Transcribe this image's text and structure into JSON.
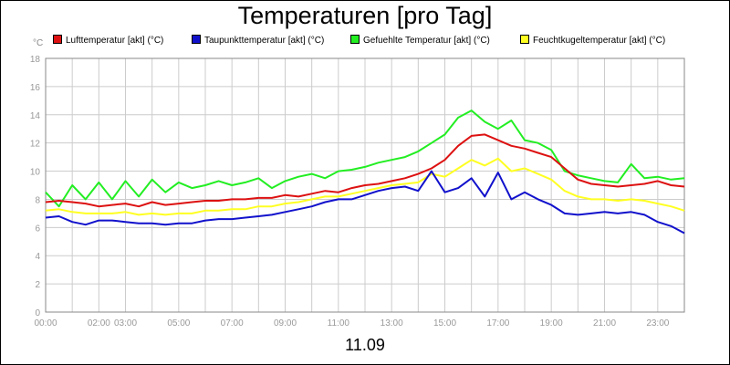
{
  "chart_data": {
    "type": "line",
    "title": "Temperaturen [pro Tag]",
    "date_label": "11.09",
    "y_unit": "°C",
    "ylim": [
      0,
      18
    ],
    "y_ticks": [
      0,
      2,
      4,
      6,
      8,
      10,
      12,
      14,
      16,
      18
    ],
    "xlim": [
      0,
      24
    ],
    "x_ticks": [
      {
        "h": 0,
        "label": "00:00"
      },
      {
        "h": 2,
        "label": "02:00"
      },
      {
        "h": 3,
        "label": "03:00"
      },
      {
        "h": 5,
        "label": "05:00"
      },
      {
        "h": 7,
        "label": "07:00"
      },
      {
        "h": 9,
        "label": "09:00"
      },
      {
        "h": 11,
        "label": "11:00"
      },
      {
        "h": 13,
        "label": "13:00"
      },
      {
        "h": 15,
        "label": "15:00"
      },
      {
        "h": 17,
        "label": "17:00"
      },
      {
        "h": 19,
        "label": "19:00"
      },
      {
        "h": 21,
        "label": "21:00"
      },
      {
        "h": 23,
        "label": "23:00"
      }
    ],
    "grid": true,
    "legend_position": "top",
    "series": [
      {
        "name": "Lufttemperatur [akt] (°C)",
        "color": "#dd1111",
        "points": [
          [
            0,
            7.8
          ],
          [
            0.5,
            7.9
          ],
          [
            1,
            7.8
          ],
          [
            1.5,
            7.7
          ],
          [
            2,
            7.5
          ],
          [
            2.5,
            7.6
          ],
          [
            3,
            7.7
          ],
          [
            3.5,
            7.5
          ],
          [
            4,
            7.8
          ],
          [
            4.5,
            7.6
          ],
          [
            5,
            7.7
          ],
          [
            5.5,
            7.8
          ],
          [
            6,
            7.9
          ],
          [
            6.5,
            7.9
          ],
          [
            7,
            8.0
          ],
          [
            7.5,
            8.0
          ],
          [
            8,
            8.1
          ],
          [
            8.5,
            8.1
          ],
          [
            9,
            8.3
          ],
          [
            9.5,
            8.2
          ],
          [
            10,
            8.4
          ],
          [
            10.5,
            8.6
          ],
          [
            11,
            8.5
          ],
          [
            11.5,
            8.8
          ],
          [
            12,
            9.0
          ],
          [
            12.5,
            9.1
          ],
          [
            13,
            9.3
          ],
          [
            13.5,
            9.5
          ],
          [
            14,
            9.8
          ],
          [
            14.5,
            10.2
          ],
          [
            15,
            10.8
          ],
          [
            15.5,
            11.8
          ],
          [
            16,
            12.5
          ],
          [
            16.5,
            12.6
          ],
          [
            17,
            12.2
          ],
          [
            17.5,
            11.8
          ],
          [
            18,
            11.6
          ],
          [
            18.5,
            11.3
          ],
          [
            19,
            11.0
          ],
          [
            19.5,
            10.2
          ],
          [
            20,
            9.4
          ],
          [
            20.5,
            9.1
          ],
          [
            21,
            9.0
          ],
          [
            21.5,
            8.9
          ],
          [
            22,
            9.0
          ],
          [
            22.5,
            9.1
          ],
          [
            23,
            9.3
          ],
          [
            23.5,
            9.0
          ],
          [
            24,
            8.9
          ]
        ]
      },
      {
        "name": "Taupunkttemperatur [akt] (°C)",
        "color": "#1111cc",
        "points": [
          [
            0,
            6.7
          ],
          [
            0.5,
            6.8
          ],
          [
            1,
            6.4
          ],
          [
            1.5,
            6.2
          ],
          [
            2,
            6.5
          ],
          [
            2.5,
            6.5
          ],
          [
            3,
            6.4
          ],
          [
            3.5,
            6.3
          ],
          [
            4,
            6.3
          ],
          [
            4.5,
            6.2
          ],
          [
            5,
            6.3
          ],
          [
            5.5,
            6.3
          ],
          [
            6,
            6.5
          ],
          [
            6.5,
            6.6
          ],
          [
            7,
            6.6
          ],
          [
            7.5,
            6.7
          ],
          [
            8,
            6.8
          ],
          [
            8.5,
            6.9
          ],
          [
            9,
            7.1
          ],
          [
            9.5,
            7.3
          ],
          [
            10,
            7.5
          ],
          [
            10.5,
            7.8
          ],
          [
            11,
            8.0
          ],
          [
            11.5,
            8.0
          ],
          [
            12,
            8.3
          ],
          [
            12.5,
            8.6
          ],
          [
            13,
            8.8
          ],
          [
            13.5,
            8.9
          ],
          [
            14,
            8.6
          ],
          [
            14.5,
            10.0
          ],
          [
            15,
            8.5
          ],
          [
            15.5,
            8.8
          ],
          [
            16,
            9.5
          ],
          [
            16.5,
            8.2
          ],
          [
            17,
            9.9
          ],
          [
            17.5,
            8.0
          ],
          [
            18,
            8.5
          ],
          [
            18.5,
            8.0
          ],
          [
            19,
            7.6
          ],
          [
            19.5,
            7.0
          ],
          [
            20,
            6.9
          ],
          [
            20.5,
            7.0
          ],
          [
            21,
            7.1
          ],
          [
            21.5,
            7.0
          ],
          [
            22,
            7.1
          ],
          [
            22.5,
            6.9
          ],
          [
            23,
            6.4
          ],
          [
            23.5,
            6.1
          ],
          [
            24,
            5.6
          ]
        ]
      },
      {
        "name": "Gefuehlte Temperatur [akt] (°C)",
        "color": "#22ee22",
        "points": [
          [
            0,
            8.5
          ],
          [
            0.5,
            7.5
          ],
          [
            1,
            9.0
          ],
          [
            1.5,
            8.0
          ],
          [
            2,
            9.2
          ],
          [
            2.5,
            8.0
          ],
          [
            3,
            9.3
          ],
          [
            3.5,
            8.2
          ],
          [
            4,
            9.4
          ],
          [
            4.5,
            8.5
          ],
          [
            5,
            9.2
          ],
          [
            5.5,
            8.8
          ],
          [
            6,
            9.0
          ],
          [
            6.5,
            9.3
          ],
          [
            7,
            9.0
          ],
          [
            7.5,
            9.2
          ],
          [
            8,
            9.5
          ],
          [
            8.5,
            8.8
          ],
          [
            9,
            9.3
          ],
          [
            9.5,
            9.6
          ],
          [
            10,
            9.8
          ],
          [
            10.5,
            9.5
          ],
          [
            11,
            10.0
          ],
          [
            11.5,
            10.1
          ],
          [
            12,
            10.3
          ],
          [
            12.5,
            10.6
          ],
          [
            13,
            10.8
          ],
          [
            13.5,
            11.0
          ],
          [
            14,
            11.4
          ],
          [
            14.5,
            12.0
          ],
          [
            15,
            12.6
          ],
          [
            15.5,
            13.8
          ],
          [
            16,
            14.3
          ],
          [
            16.5,
            13.5
          ],
          [
            17,
            13.0
          ],
          [
            17.5,
            13.6
          ],
          [
            18,
            12.2
          ],
          [
            18.5,
            12.0
          ],
          [
            19,
            11.5
          ],
          [
            19.5,
            10.0
          ],
          [
            20,
            9.7
          ],
          [
            20.5,
            9.5
          ],
          [
            21,
            9.3
          ],
          [
            21.5,
            9.2
          ],
          [
            22,
            10.5
          ],
          [
            22.5,
            9.5
          ],
          [
            23,
            9.6
          ],
          [
            23.5,
            9.4
          ],
          [
            24,
            9.5
          ]
        ]
      },
      {
        "name": "Feuchtkugeltemperatur [akt] (°C)",
        "color": "#ffff22",
        "points": [
          [
            0,
            7.2
          ],
          [
            0.5,
            7.3
          ],
          [
            1,
            7.1
          ],
          [
            1.5,
            7.0
          ],
          [
            2,
            7.0
          ],
          [
            2.5,
            7.0
          ],
          [
            3,
            7.1
          ],
          [
            3.5,
            6.9
          ],
          [
            4,
            7.0
          ],
          [
            4.5,
            6.9
          ],
          [
            5,
            7.0
          ],
          [
            5.5,
            7.0
          ],
          [
            6,
            7.2
          ],
          [
            6.5,
            7.2
          ],
          [
            7,
            7.3
          ],
          [
            7.5,
            7.3
          ],
          [
            8,
            7.5
          ],
          [
            8.5,
            7.5
          ],
          [
            9,
            7.7
          ],
          [
            9.5,
            7.8
          ],
          [
            10,
            8.0
          ],
          [
            10.5,
            8.2
          ],
          [
            11,
            8.2
          ],
          [
            11.5,
            8.4
          ],
          [
            12,
            8.6
          ],
          [
            12.5,
            8.8
          ],
          [
            13,
            9.0
          ],
          [
            13.5,
            9.1
          ],
          [
            14,
            9.2
          ],
          [
            14.5,
            9.8
          ],
          [
            15,
            9.6
          ],
          [
            15.5,
            10.2
          ],
          [
            16,
            10.8
          ],
          [
            16.5,
            10.4
          ],
          [
            17,
            10.9
          ],
          [
            17.5,
            10.0
          ],
          [
            18,
            10.2
          ],
          [
            18.5,
            9.8
          ],
          [
            19,
            9.4
          ],
          [
            19.5,
            8.6
          ],
          [
            20,
            8.2
          ],
          [
            20.5,
            8.0
          ],
          [
            21,
            8.0
          ],
          [
            21.5,
            7.9
          ],
          [
            22,
            8.0
          ],
          [
            22.5,
            7.9
          ],
          [
            23,
            7.7
          ],
          [
            23.5,
            7.5
          ],
          [
            24,
            7.2
          ]
        ]
      }
    ]
  }
}
